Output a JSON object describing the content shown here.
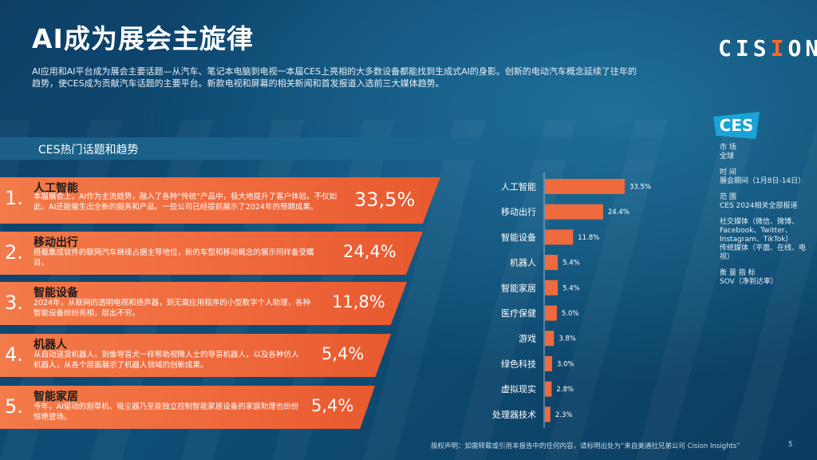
{
  "title": "AI成为展会主旋律",
  "logo": {
    "text_pre": "CIS",
    "text_o": "I",
    "text_post": "ON"
  },
  "intro": "AI应用和AI平台成为展会主要话题—从汽车、笔记本电脑到电视一本届CES上亮相的大多数设备都能找到生成式AI的身影。创新的电动汽车概念延续了往年的趋势，使CES成为贡献汽车话题的主要平台。新款电视和屏幕的相关新闻和首发报道入选前三大媒体趋势。",
  "section_title": "CES热门话题和趋势",
  "topics": [
    {
      "num": "1.",
      "name": "人工智能",
      "desc": "本届展会上，AI作为主流趋势，融入了各种“传统”产品中，极大地提升了客户体验。不仅如此，AI还能催生出全新的服务和产品。一些公司已经提前展示了2024年的预期成果。",
      "pct": "33,5%"
    },
    {
      "num": "2.",
      "name": "移动出行",
      "desc": "搭载集成软件的联网汽车继续占据主导地位，新的车型和移动概念的展示同样备受瞩目。",
      "pct": "24,4%"
    },
    {
      "num": "3.",
      "name": "智能设备",
      "desc": "2024年，从联网的透明电视和扬声器，到无需应用程序的小型数字个人助理，各种智能设备纷纷亮相，层出不穷。",
      "pct": "11,8%"
    },
    {
      "num": "4.",
      "name": "机器人",
      "desc": "从自动送货机器人，到像导盲犬一样帮助视障人士的导盲机器人，以及各种仿人机器人，从各个层面展示了机器人领域的创新成果。",
      "pct": "5,4%"
    },
    {
      "num": "5.",
      "name": "智能家居",
      "desc": "今年，AI驱动的割草机、吸尘器乃至能独立控制智能家居设备的家庭助理也纷纷惊艳登场。",
      "pct": "5,4%"
    }
  ],
  "chart_data": {
    "type": "bar",
    "orientation": "horizontal",
    "categories": [
      "人工智能",
      "移动出行",
      "智能设备",
      "机器人",
      "智能家居",
      "医疗保健",
      "游戏",
      "绿色科技",
      "虚拟现实",
      "处理器技术"
    ],
    "values": [
      33.5,
      24.4,
      11.8,
      5.4,
      5.4,
      5.0,
      3.8,
      3.0,
      2.8,
      2.3
    ],
    "labels": [
      "33.5%",
      "24.4%",
      "11.8%",
      "5.4%",
      "5.4%",
      "5.0%",
      "3.8%",
      "3.0%",
      "2.8%",
      "2.3%"
    ],
    "bar_color": "#ef6a3d"
  },
  "side": {
    "ces_logo": "CES",
    "market_label": "市 场",
    "market_value": "全球",
    "time_label": "时 间",
    "time_value": "展会期间（1月8日-14日）",
    "scope_label": "范 围",
    "scope_value": "CES 2024相关全部报道",
    "social": "社交媒体（微信、微博、Facebook、Twitter、Instagram、TikTok）",
    "traditional": "传统媒体（平面、在线、电视）",
    "metric_label": "衡 量 指 标",
    "metric_value": "SOV（净到达率）"
  },
  "footer": "版权声明：如需转载或引用本报告中的任何内容，请标明出处为“来自美通社兄弟公司 Cision Insights”",
  "page_number": "5"
}
